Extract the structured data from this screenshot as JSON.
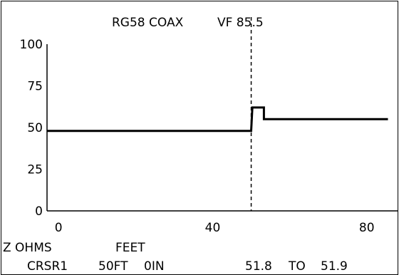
{
  "header": {
    "cable": "RG58 COAX",
    "vf": "VF 85.5"
  },
  "footer": {
    "y_unit": "Z OHMS",
    "x_unit": "FEET",
    "cursor_label": "CRSR1",
    "cursor_ft": "50FT",
    "cursor_in": "0IN",
    "range_from": "51.8",
    "range_to_label": "TO",
    "range_to": "51.9"
  },
  "chart_data": {
    "type": "line",
    "title": "RG58 COAX   VF 85.5",
    "xlabel": "FEET",
    "ylabel": "Z OHMS",
    "xlim": [
      -3,
      88
    ],
    "ylim": [
      0,
      100
    ],
    "x_ticks": [
      0,
      40,
      80
    ],
    "y_ticks": [
      0,
      25,
      50,
      75,
      100
    ],
    "grid": false,
    "cursor_x": 50,
    "series": [
      {
        "values": [
          {
            "x": -3,
            "y": 48
          },
          {
            "x": 50,
            "y": 48
          },
          {
            "x": 50.3,
            "y": 62
          },
          {
            "x": 53.3,
            "y": 62
          },
          {
            "x": 53.3,
            "y": 55
          },
          {
            "x": 85.5,
            "y": 55
          }
        ]
      }
    ]
  }
}
